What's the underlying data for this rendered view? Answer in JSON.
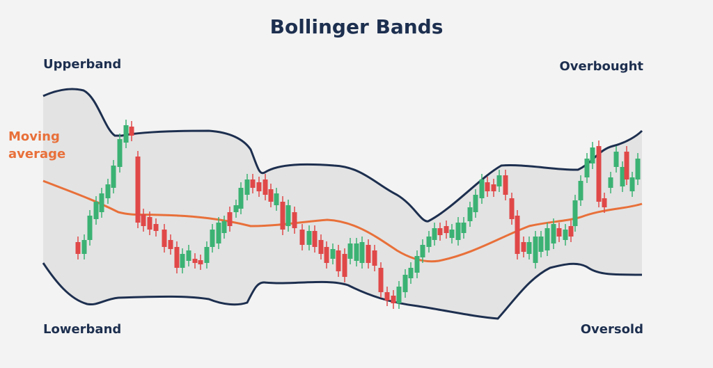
{
  "title": "Bollinger Bands",
  "labels": {
    "upperband": "Upperband",
    "overbought": "Overbought",
    "moving_average": [
      "Moving",
      "average"
    ],
    "lowerband": "Lowerband",
    "oversold": "Oversold"
  }
}
